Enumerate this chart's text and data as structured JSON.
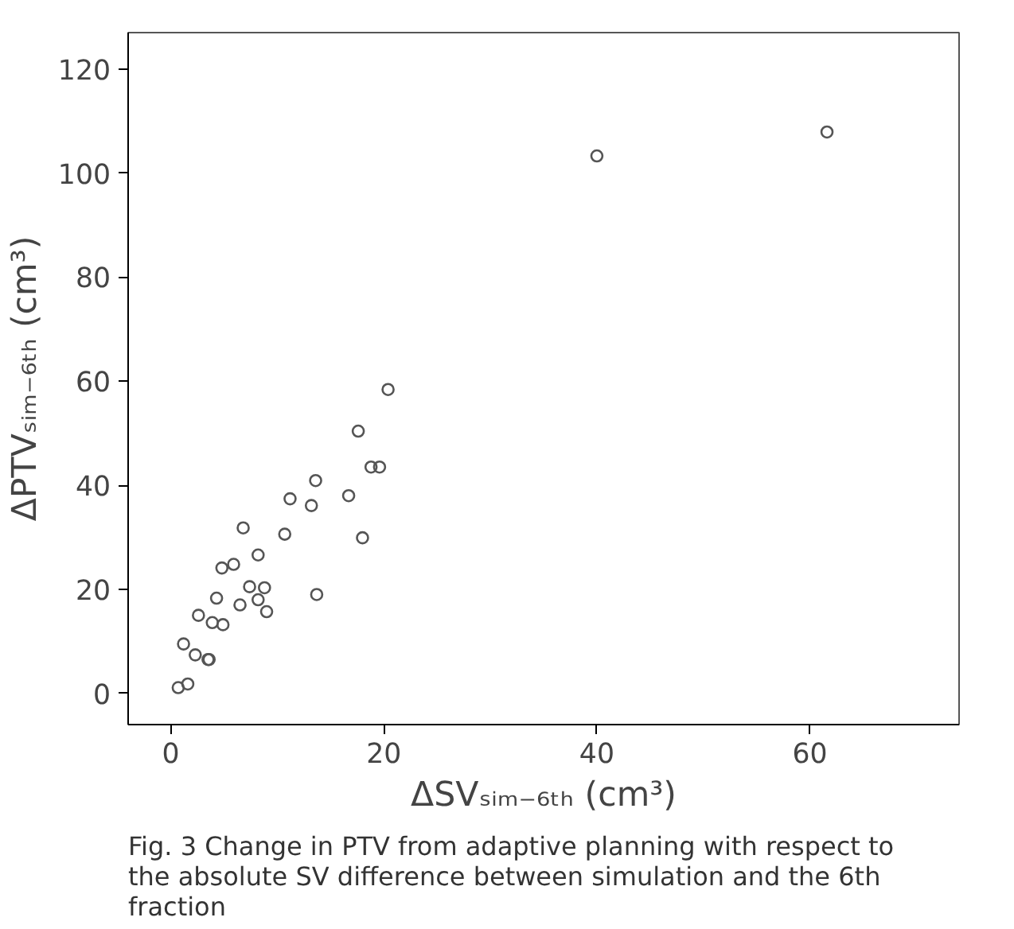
{
  "chart_data": {
    "type": "scatter",
    "xlabel": "ΔSVₛᵢₘ₋₆ₜₕ (cm³)",
    "ylabel": "ΔPTVₛᵢₘ₋₆ₜₕ (cm³)",
    "annotations": [
      "Fig. 3 Change in PTV from adaptive planning with respect to the absolute SV difference between simulation and the 6th fraction"
    ],
    "x": [
      0.7,
      1.6,
      1.2,
      2.3,
      3.5,
      3.6,
      2.6,
      3.9,
      4.9,
      4.3,
      4.8,
      5.9,
      6.5,
      6.8,
      7.4,
      8.2,
      8.2,
      8.8,
      9.0,
      10.7,
      11.2,
      13.2,
      13.6,
      13.7,
      16.7,
      18.0,
      17.6,
      20.4,
      18.8,
      19.6,
      40.0,
      61.6
    ],
    "series": [
      {
        "color": "#555555",
        "values": [
          1.1,
          1.8,
          9.5,
          7.4,
          6.5,
          6.5,
          15.0,
          13.6,
          13.2,
          18.3,
          24.1,
          24.8,
          17.0,
          31.8,
          20.5,
          26.6,
          18.0,
          20.3,
          15.7,
          30.6,
          37.4,
          36.1,
          40.9,
          19.0,
          38.0,
          29.9,
          50.4,
          58.4,
          43.5,
          43.5,
          103.3,
          107.9
        ]
      }
    ],
    "marker": "circle",
    "xlim": [
      -4,
      74
    ],
    "ylim": [
      -6,
      127
    ],
    "xticks": [
      0,
      20,
      40,
      60
    ],
    "yticks": [
      0,
      20,
      40,
      60,
      80,
      100,
      120
    ],
    "grid": false
  }
}
